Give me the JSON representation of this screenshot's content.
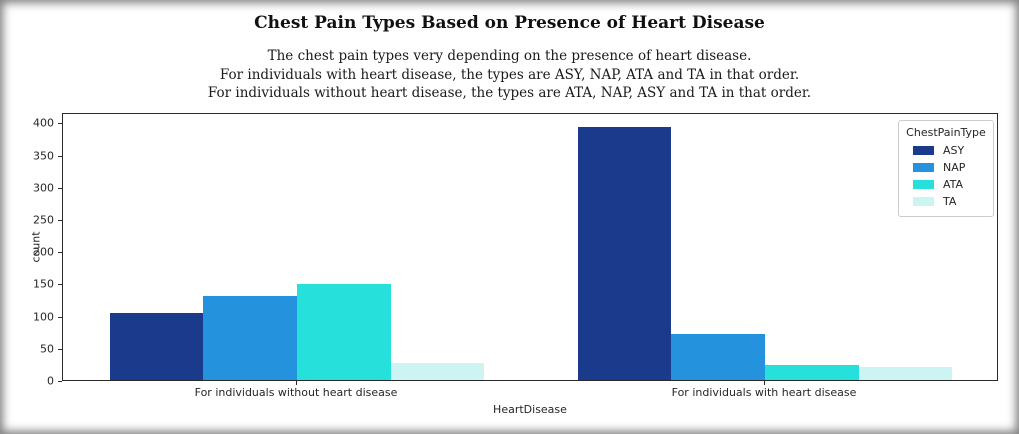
{
  "title": "Chest Pain Types Based on Presence of Heart Disease",
  "subtitle_lines": [
    "The chest pain types very depending on the presence of heart disease.",
    "For individuals with heart disease, the types are ASY, NAP, ATA and TA in that order.",
    "For individuals without heart disease, the types are ATA, NAP, ASY and TA in that order."
  ],
  "chart_data": {
    "type": "bar",
    "categories": [
      "For individuals without heart disease",
      "For individuals with heart disease"
    ],
    "series": [
      {
        "name": "ASY",
        "color": "#1a3a8c",
        "values": [
          104,
          392
        ]
      },
      {
        "name": "NAP",
        "color": "#2492dc",
        "values": [
          131,
          72
        ]
      },
      {
        "name": "ATA",
        "color": "#26e0dc",
        "values": [
          149,
          24
        ]
      },
      {
        "name": "TA",
        "color": "#ccf4f2",
        "values": [
          26,
          20
        ]
      }
    ],
    "xlabel": "HeartDisease",
    "ylabel": "count",
    "ylim": [
      0,
      416
    ],
    "yticks": [
      0,
      50,
      100,
      150,
      200,
      250,
      300,
      350,
      400
    ],
    "legend_title": "ChestPainType",
    "legend_position": "upper right",
    "grid": false
  }
}
